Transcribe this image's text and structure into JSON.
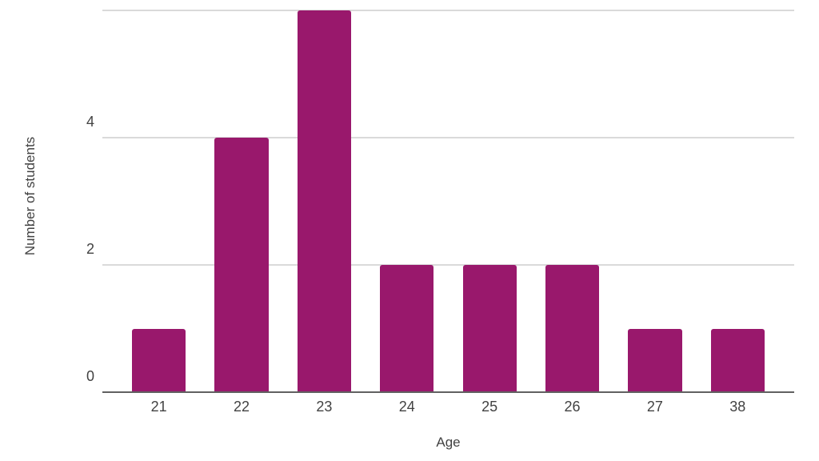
{
  "chart_data": {
    "type": "bar",
    "title": "",
    "categories": [
      "21",
      "22",
      "23",
      "24",
      "25",
      "26",
      "27",
      "38"
    ],
    "values": [
      1,
      4,
      6,
      2,
      2,
      2,
      1,
      1
    ],
    "xlabel": "Age",
    "ylabel": "Number of students",
    "ylim": [
      0,
      6
    ],
    "yticks": [
      0,
      2,
      4,
      6
    ],
    "legend_position": "none",
    "grid": true,
    "colors": {
      "bar": "#99186C",
      "gridline": "#dadada",
      "axis_line": "#616161",
      "tick_label": "#424242",
      "axis_title": "#424242",
      "background": "#ffffff"
    }
  }
}
